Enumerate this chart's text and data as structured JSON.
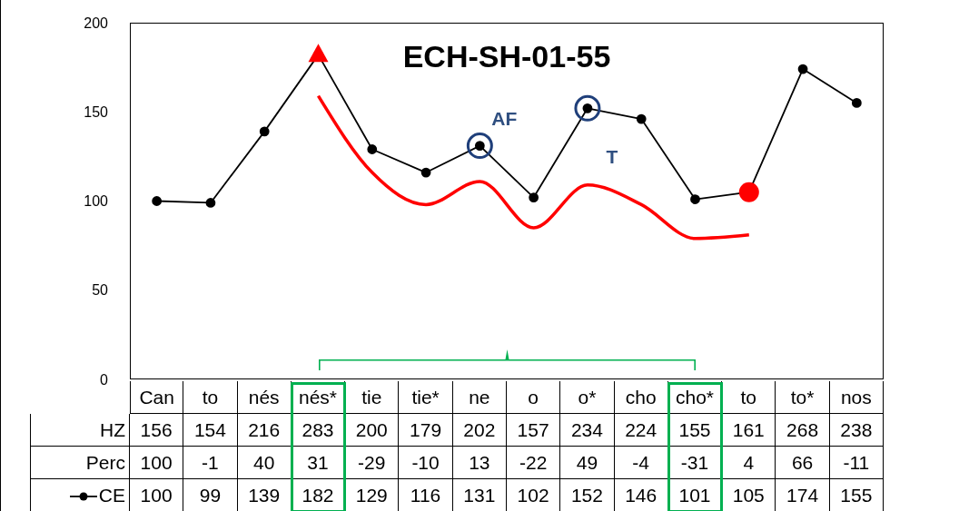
{
  "chart_data": {
    "type": "line",
    "title": "ECH-SH-01-55",
    "categories": [
      "Can",
      "to",
      "nés",
      "nés*",
      "tie",
      "tie*",
      "ne",
      "o",
      "o*",
      "cho",
      "cho*",
      "to",
      "to*",
      "nos"
    ],
    "series": [
      {
        "name": "CE",
        "color": "#000000",
        "marker": "circle",
        "values": [
          100,
          99,
          139,
          182,
          129,
          116,
          131,
          102,
          152,
          146,
          101,
          105,
          174,
          155
        ],
        "value_labels": [
          "100",
          "99",
          "139",
          "182",
          "129",
          "116",
          "131",
          "102",
          "152",
          "146",
          "101",
          "105",
          "174",
          "155"
        ]
      },
      {
        "type": "line",
        "color": "#ff0000",
        "marker": "none",
        "values": [
          null,
          null,
          null,
          159,
          116,
          98,
          111,
          85,
          109,
          98,
          79,
          81,
          null,
          null
        ]
      },
      {
        "type": "scatter",
        "color": "#ff0000",
        "marker": "triangle",
        "values": [
          null,
          null,
          null,
          182,
          null,
          null,
          null,
          null,
          null,
          null,
          null,
          null,
          null,
          null
        ]
      },
      {
        "type": "scatter",
        "color": "#ff0000",
        "marker": "circle",
        "values": [
          null,
          null,
          null,
          null,
          null,
          null,
          null,
          null,
          null,
          null,
          null,
          105,
          null,
          null
        ]
      }
    ],
    "annotations": [
      {
        "text": "AF",
        "x": "ne",
        "y": 131
      },
      {
        "text": "T",
        "x": "o*",
        "y": 152
      },
      "HZ",
      "156",
      "154",
      "216",
      "283",
      "200",
      "179",
      "202",
      "157",
      "234",
      "224",
      "155",
      "161",
      "268",
      "238",
      "Perc",
      "100",
      "-1",
      "40",
      "31",
      "-29",
      "-10",
      "13",
      "-22",
      "49",
      "-4",
      "-31",
      "4",
      "66",
      "-11"
    ],
    "ylim": [
      0,
      200
    ],
    "yticks": [
      0,
      50,
      100,
      150,
      200
    ],
    "grid": false,
    "legend": "bottom left"
  }
}
